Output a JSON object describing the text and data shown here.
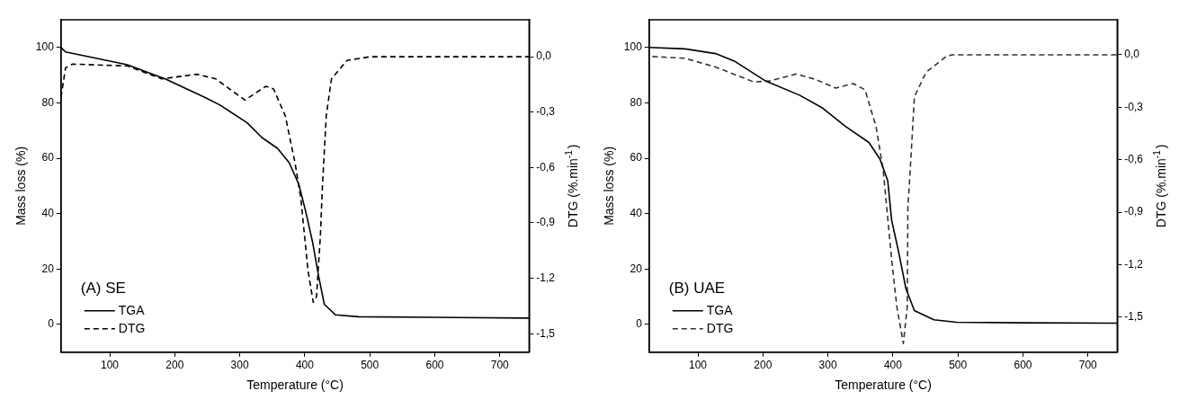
{
  "chart_data": [
    {
      "type": "line",
      "xlabel": "Temperature (°C)",
      "ylabel": "Mass loss (%)",
      "y2label": "DTG (%.min$^{-1}$)",
      "legend_title": "(A) SE",
      "legend": "bottom left",
      "grid": false,
      "marker": "none",
      "xlim": [
        25,
        745
      ],
      "xticks": [
        100,
        200,
        300,
        400,
        500,
        600,
        700
      ],
      "ylim": [
        -10,
        110
      ],
      "yticks": [
        0,
        20,
        40,
        60,
        80,
        100
      ],
      "y2lim": [
        -1.6,
        0.2
      ],
      "y2ticks": [
        {
          "value": 0,
          "label": "0,0"
        },
        {
          "value": -0.3,
          "label": "-0,3"
        },
        {
          "value": -0.6,
          "label": "-0,6"
        },
        {
          "value": -0.9,
          "label": "-0,9"
        },
        {
          "value": -1.2,
          "label": "-1,2"
        },
        {
          "value": -1.5,
          "label": "-1,5"
        }
      ],
      "series": [
        {
          "name": "TGA",
          "color": "#000000",
          "line_style": "solid",
          "x": [
            25,
            32,
            127,
            186,
            246,
            269,
            311,
            334,
            358,
            376,
            391,
            402,
            412,
            421,
            430,
            447,
            483,
            600,
            745
          ],
          "values": [
            100,
            98.4,
            93.8,
            88.6,
            82,
            79.3,
            72.9,
            67.5,
            63.6,
            58.4,
            50.5,
            40.2,
            29.7,
            17.8,
            7.3,
            3.5,
            2.8,
            2.6,
            2.3
          ]
        },
        {
          "name": "DTG",
          "color": "#000000",
          "line_style": "dashed",
          "axis": "y2",
          "x": [
            25,
            32,
            43,
            127,
            180,
            234,
            263,
            308,
            340,
            352,
            370,
            385,
            394,
            405,
            413,
            418,
            424,
            427,
            433,
            441,
            465,
            501,
            745
          ],
          "values": [
            -0.22,
            -0.06,
            -0.04,
            -0.05,
            -0.12,
            -0.095,
            -0.12,
            -0.235,
            -0.16,
            -0.175,
            -0.32,
            -0.575,
            -0.77,
            -1.16,
            -1.33,
            -1.3,
            -0.97,
            -0.71,
            -0.32,
            -0.12,
            -0.02,
            0,
            0
          ]
        }
      ]
    },
    {
      "type": "line",
      "xlabel": "Temperature (°C)",
      "ylabel": "Mass loss (%)",
      "y2label": "DTG (%.min$^{-1}$)",
      "legend_title": "(B) UAE",
      "legend": "bottom left",
      "grid": false,
      "marker": "none",
      "xlim": [
        25,
        745
      ],
      "xticks": [
        100,
        200,
        300,
        400,
        500,
        600,
        700
      ],
      "ylim": [
        -10,
        110
      ],
      "yticks": [
        0,
        20,
        40,
        60,
        80,
        100
      ],
      "y2lim": [
        -1.7,
        0.2
      ],
      "y2ticks": [
        {
          "value": 0,
          "label": "0,0"
        },
        {
          "value": -0.3,
          "label": "-0,3"
        },
        {
          "value": -0.6,
          "label": "-0,6"
        },
        {
          "value": -0.9,
          "label": "-0,9"
        },
        {
          "value": -1.2,
          "label": "-1,2"
        },
        {
          "value": -1.5,
          "label": "-1,5"
        }
      ],
      "series": [
        {
          "name": "TGA",
          "color": "#000000",
          "line_style": "solid",
          "x": [
            25,
            80,
            127,
            156,
            204,
            257,
            292,
            327,
            363,
            380,
            392,
            398,
            409,
            420,
            433,
            463,
            498,
            600,
            745
          ],
          "values": [
            100,
            99.5,
            97.8,
            95.1,
            87.9,
            82.7,
            78.1,
            71.5,
            65.7,
            59.7,
            51.9,
            37.7,
            25.9,
            12.9,
            5,
            1.7,
            0.8,
            0.6,
            0.5
          ]
        },
        {
          "name": "DTG",
          "color": "#333333",
          "line_style": "dashed",
          "axis": "y2",
          "x": [
            30,
            80,
            127,
            186,
            210,
            251,
            280,
            312,
            339,
            357,
            374,
            385,
            398,
            406,
            416,
            422,
            423,
            425,
            433,
            451,
            480,
            490,
            745
          ],
          "values": [
            -0.01,
            -0.02,
            -0.07,
            -0.155,
            -0.15,
            -0.11,
            -0.14,
            -0.19,
            -0.165,
            -0.2,
            -0.41,
            -0.66,
            -1.17,
            -1.44,
            -1.65,
            -1.44,
            -0.86,
            -0.76,
            -0.24,
            -0.1,
            -0.015,
            0,
            0
          ]
        }
      ]
    }
  ]
}
